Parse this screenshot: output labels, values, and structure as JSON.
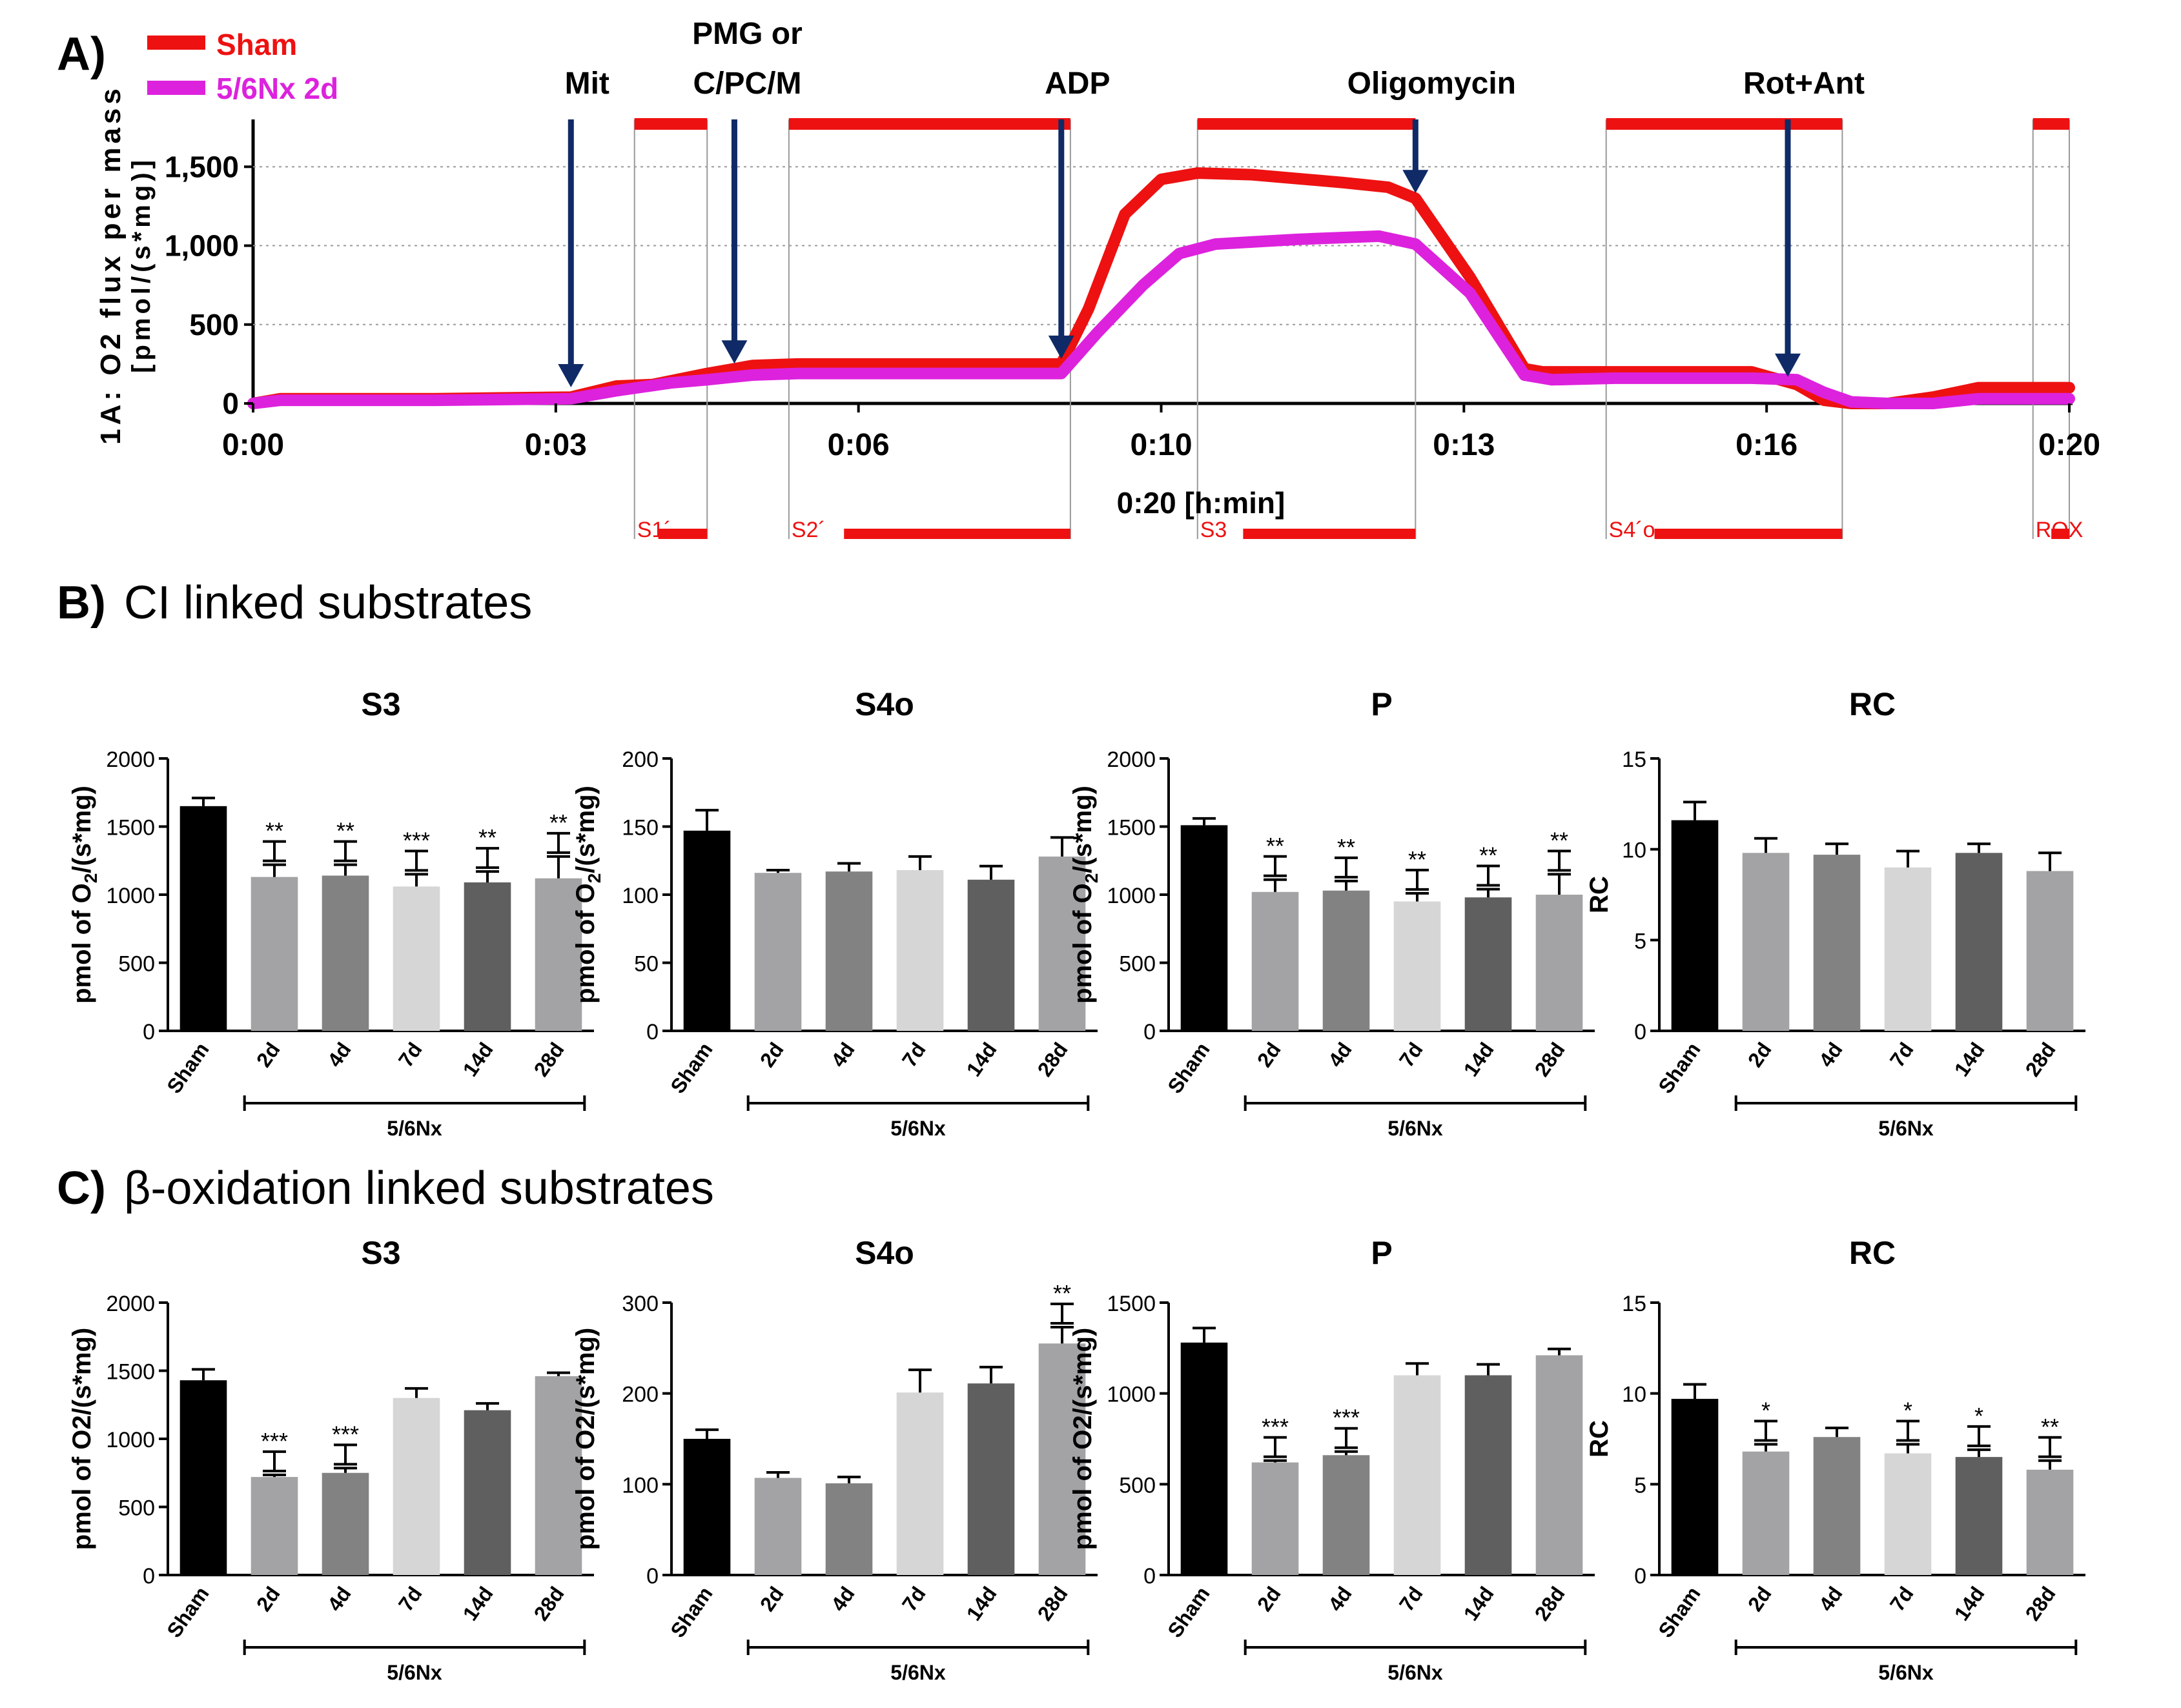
{
  "panel_a": {
    "letter": "A)",
    "legend": [
      {
        "label": "Sham",
        "color": "#ee1111"
      },
      {
        "label": "5/6Nx 2d",
        "color": "#dd22dd"
      }
    ],
    "ylabel_line1": "1A: O2 flux per mass",
    "ylabel_line2": "[pmol/(s*mg)]",
    "xlabel": "0:20 [h:min]",
    "yticks": [
      "0",
      "500",
      "1,000",
      "1,500"
    ],
    "xticks": [
      "0:00",
      "0:03",
      "0:06",
      "0:10",
      "0:13",
      "0:16",
      "0:20"
    ],
    "injections": [
      {
        "label": "Mit",
        "minute": 3.5
      },
      {
        "label": "PMG or",
        "label2": "C/PC/M",
        "minute": 5.3
      },
      {
        "label": "ADP",
        "minute": 8.9
      },
      {
        "label": "Oligomycin",
        "minute": 12.8
      },
      {
        "label": "Rot+Ant",
        "minute": 16.9
      }
    ],
    "marks": [
      {
        "label": "S1´",
        "start": 4.2,
        "end": 5.0
      },
      {
        "label": "S2´",
        "start": 5.9,
        "end": 9.0
      },
      {
        "label": "S3",
        "start": 10.4,
        "end": 12.8
      },
      {
        "label": "S4´o",
        "start": 14.9,
        "end": 17.5
      },
      {
        "label": "ROX",
        "start": 19.6,
        "end": 20.0
      }
    ]
  },
  "panel_b": {
    "letter": "B)",
    "title": "CI linked substrates"
  },
  "panel_c": {
    "letter": "C)",
    "title": "β-oxidation linked substrates"
  },
  "chart_data": [
    {
      "id": "A",
      "type": "line",
      "title": "",
      "xlabel": "0:20 [h:min]",
      "ylabel": "1A: O2 flux per mass [pmol/(s*mg)]",
      "xlim": [
        0,
        20
      ],
      "ylim": [
        0,
        1800
      ],
      "series": [
        {
          "name": "Sham",
          "color": "#ee1111",
          "x": [
            0,
            0.3,
            1.2,
            2.0,
            3.5,
            4.0,
            4.4,
            5.0,
            5.5,
            6.0,
            7.0,
            8.0,
            8.9,
            9.2,
            9.6,
            10.0,
            10.4,
            11.0,
            12.0,
            12.5,
            12.8,
            13.4,
            14.0,
            14.2,
            15.0,
            16.5,
            17.0,
            17.3,
            17.6,
            18.0,
            18.5,
            19.0,
            20.0
          ],
          "y": [
            0,
            30,
            30,
            30,
            40,
            110,
            120,
            190,
            240,
            250,
            250,
            250,
            250,
            600,
            1200,
            1420,
            1460,
            1450,
            1400,
            1370,
            1300,
            800,
            220,
            200,
            200,
            200,
            120,
            20,
            0,
            0,
            40,
            100,
            100
          ]
        },
        {
          "name": "5/6Nx 2d",
          "color": "#dd22dd",
          "x": [
            0,
            0.3,
            1.2,
            2.0,
            3.5,
            4.0,
            4.6,
            5.0,
            5.5,
            6.0,
            7.0,
            8.0,
            8.9,
            9.3,
            9.8,
            10.2,
            10.6,
            11.5,
            12.4,
            12.8,
            13.4,
            14.0,
            14.3,
            15.0,
            16.5,
            17.0,
            17.3,
            17.6,
            18.0,
            18.5,
            19.0,
            20.0
          ],
          "y": [
            0,
            20,
            20,
            20,
            30,
            80,
            130,
            150,
            180,
            190,
            190,
            190,
            190,
            450,
            750,
            950,
            1010,
            1040,
            1060,
            1010,
            700,
            180,
            150,
            160,
            160,
            150,
            70,
            10,
            0,
            0,
            30,
            30
          ]
        }
      ]
    },
    {
      "id": "B-S3",
      "type": "bar",
      "title": "S3",
      "ylabel": "pmol of O2/(s*mg)",
      "ylim": [
        0,
        2000
      ],
      "yticks": [
        "0",
        "500",
        "1000",
        "1500",
        "2000"
      ],
      "categories": [
        "Sham",
        "2d",
        "4d",
        "7d",
        "14d",
        "28d"
      ],
      "values": [
        1650,
        1130,
        1140,
        1060,
        1090,
        1120
      ],
      "errors": [
        60,
        90,
        80,
        90,
        80,
        160
      ],
      "significance": [
        "",
        "**",
        "**",
        "***",
        "**",
        "**"
      ],
      "group_label": "5/6Nx"
    },
    {
      "id": "B-S4o",
      "type": "bar",
      "title": "S4o",
      "ylabel": "pmol of O2/(s*mg)",
      "ylim": [
        0,
        200
      ],
      "yticks": [
        "0",
        "50",
        "100",
        "150",
        "200"
      ],
      "categories": [
        "Sham",
        "2d",
        "4d",
        "7d",
        "14d",
        "28d"
      ],
      "values": [
        147,
        116,
        117,
        118,
        111,
        128
      ],
      "errors": [
        15,
        2,
        6,
        10,
        10,
        14
      ],
      "significance": [
        "",
        "",
        "",
        "",
        "",
        ""
      ],
      "group_label": "5/6Nx"
    },
    {
      "id": "B-P",
      "type": "bar",
      "title": "P",
      "ylabel": "pmol of O2/(s*mg)",
      "ylim": [
        0,
        2000
      ],
      "yticks": [
        "0",
        "500",
        "1000",
        "1500",
        "2000"
      ],
      "categories": [
        "Sham",
        "2d",
        "4d",
        "7d",
        "14d",
        "28d"
      ],
      "values": [
        1510,
        1020,
        1030,
        950,
        980,
        1000
      ],
      "errors": [
        50,
        90,
        70,
        60,
        60,
        150
      ],
      "significance": [
        "",
        "**",
        "**",
        "**",
        "**",
        "**"
      ],
      "group_label": "5/6Nx"
    },
    {
      "id": "B-RC",
      "type": "bar",
      "title": "RC",
      "ylabel": "RC",
      "ylim": [
        0,
        15
      ],
      "yticks": [
        "0",
        "5",
        "10",
        "15"
      ],
      "categories": [
        "Sham",
        "2d",
        "4d",
        "7d",
        "14d",
        "28d"
      ],
      "values": [
        11.6,
        9.8,
        9.7,
        9.0,
        9.8,
        8.8
      ],
      "errors": [
        1.0,
        0.8,
        0.6,
        0.9,
        0.5,
        1.0
      ],
      "significance": [
        "",
        "",
        "",
        "",
        "",
        ""
      ],
      "group_label": "5/6Nx"
    },
    {
      "id": "C-S3",
      "type": "bar",
      "title": "S3",
      "ylabel": "pmol of O2/(s*mg)",
      "ylim": [
        0,
        2000
      ],
      "yticks": [
        "0",
        "500",
        "1000",
        "1500",
        "2000"
      ],
      "categories": [
        "Sham",
        "2d",
        "4d",
        "7d",
        "14d",
        "28d"
      ],
      "values": [
        1430,
        720,
        750,
        1300,
        1210,
        1460
      ],
      "errors": [
        80,
        15,
        35,
        70,
        50,
        25
      ],
      "significance": [
        "",
        "***",
        "***",
        "",
        "",
        ""
      ],
      "group_label": "5/6Nx"
    },
    {
      "id": "C-S4o",
      "type": "bar",
      "title": "S4o",
      "ylabel": "pmol of O2/(s*mg)",
      "ylim": [
        0,
        300
      ],
      "yticks": [
        "0",
        "100",
        "200",
        "300"
      ],
      "categories": [
        "Sham",
        "2d",
        "4d",
        "7d",
        "14d",
        "28d"
      ],
      "values": [
        150,
        107,
        101,
        201,
        211,
        255
      ],
      "errors": [
        10,
        6,
        7,
        25,
        18,
        18
      ],
      "significance": [
        "",
        "",
        "",
        "",
        "",
        "**"
      ],
      "group_label": "5/6Nx"
    },
    {
      "id": "C-P",
      "type": "bar",
      "title": "P",
      "ylabel": "pmol of O2/(s*mg)",
      "ylim": [
        0,
        1500
      ],
      "yticks": [
        "0",
        "500",
        "1000",
        "1500"
      ],
      "categories": [
        "Sham",
        "2d",
        "4d",
        "7d",
        "14d",
        "28d"
      ],
      "values": [
        1280,
        620,
        660,
        1100,
        1100,
        1210
      ],
      "errors": [
        80,
        10,
        20,
        65,
        60,
        35
      ],
      "significance": [
        "",
        "***",
        "***",
        "",
        "",
        ""
      ],
      "group_label": "5/6Nx"
    },
    {
      "id": "C-RC",
      "type": "bar",
      "title": "RC",
      "ylabel": "RC",
      "ylim": [
        0,
        15
      ],
      "yticks": [
        "0",
        "5",
        "10",
        "15"
      ],
      "categories": [
        "Sham",
        "2d",
        "4d",
        "7d",
        "14d",
        "28d"
      ],
      "values": [
        9.7,
        6.8,
        7.6,
        6.7,
        6.5,
        5.8
      ],
      "errors": [
        0.8,
        0.4,
        0.5,
        0.5,
        0.4,
        0.5
      ],
      "significance": [
        "",
        "*",
        "",
        "*",
        "*",
        "**"
      ],
      "group_label": "5/6Nx"
    }
  ]
}
